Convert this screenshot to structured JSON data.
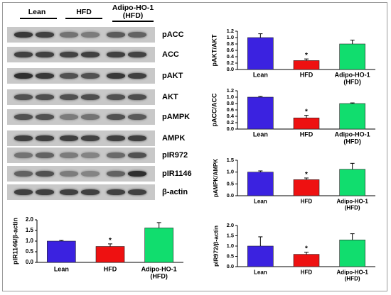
{
  "blot": {
    "groups": [
      {
        "label": "Lean",
        "line2": ""
      },
      {
        "label": "HFD",
        "line2": ""
      },
      {
        "label": "Adipo-HO-1",
        "line2": "(HFD)"
      }
    ],
    "rows": [
      {
        "label": "pACC",
        "intensity": [
          0.85,
          0.8,
          0.5,
          0.45,
          0.65,
          0.6
        ]
      },
      {
        "label": "ACC",
        "intensity": [
          0.8,
          0.8,
          0.78,
          0.8,
          0.8,
          0.78
        ]
      },
      {
        "label": "pAKT",
        "intensity": [
          0.9,
          0.85,
          0.7,
          0.7,
          0.85,
          0.8
        ]
      },
      {
        "label": "AKT",
        "intensity": [
          0.7,
          0.72,
          0.7,
          0.72,
          0.7,
          0.72
        ]
      },
      {
        "label": "pAMPK",
        "intensity": [
          0.7,
          0.7,
          0.45,
          0.5,
          0.7,
          0.65
        ]
      },
      {
        "label": "AMPK",
        "intensity": [
          0.8,
          0.8,
          0.8,
          0.78,
          0.8,
          0.8
        ]
      },
      {
        "label": "pIR972",
        "intensity": [
          0.5,
          0.6,
          0.45,
          0.4,
          0.55,
          0.7
        ]
      },
      {
        "label": "pIR1146",
        "intensity": [
          0.6,
          0.7,
          0.45,
          0.4,
          0.6,
          0.9
        ]
      },
      {
        "label": "β-actin",
        "intensity": [
          0.8,
          0.8,
          0.8,
          0.8,
          0.8,
          0.8
        ]
      }
    ]
  },
  "colors": {
    "lean": "#3b22e0",
    "hfd": "#ee1111",
    "adipo": "#11dd6e"
  },
  "chart_data": [
    {
      "id": "pir1146",
      "type": "bar",
      "categories": [
        "Lean",
        "HFD",
        "Adipo-HO-1\n(HFD)"
      ],
      "values": [
        1.0,
        0.75,
        1.62
      ],
      "errors": [
        0.03,
        0.12,
        0.25
      ],
      "annotations": [
        "",
        "*",
        ""
      ],
      "ylabel": "pIR1146/β-actin",
      "ylim": [
        0,
        2.0
      ],
      "yticks": [
        "0.0",
        "0.5",
        "1.0",
        "1.5",
        "2.0"
      ]
    },
    {
      "id": "pakt",
      "type": "bar",
      "categories": [
        "Lean",
        "HFD",
        "Adipo-HO-1\n(HFD)"
      ],
      "values": [
        1.0,
        0.28,
        0.8
      ],
      "errors": [
        0.12,
        0.05,
        0.12
      ],
      "annotations": [
        "",
        "*",
        ""
      ],
      "ylabel": "pAKT/AKT",
      "ylim": [
        0,
        1.2
      ],
      "yticks": [
        "0.0",
        "0.2",
        "0.4",
        "0.6",
        "0.8",
        "1.0",
        "1.2"
      ]
    },
    {
      "id": "pacc",
      "type": "bar",
      "categories": [
        "Lean",
        "HFD",
        "Adipo-HO-1\n(HFD)"
      ],
      "values": [
        1.0,
        0.35,
        0.8
      ],
      "errors": [
        0.02,
        0.08,
        0.02
      ],
      "annotations": [
        "",
        "*",
        ""
      ],
      "ylabel": "pACC/ACC",
      "ylim": [
        0,
        1.2
      ],
      "yticks": [
        "0.0",
        "0.2",
        "0.4",
        "0.6",
        "0.8",
        "1.0",
        "1.2"
      ]
    },
    {
      "id": "pampk",
      "type": "bar",
      "categories": [
        "Lean",
        "HFD",
        "Adipo-HO-1\n(HFD)"
      ],
      "values": [
        1.0,
        0.68,
        1.12
      ],
      "errors": [
        0.05,
        0.07,
        0.25
      ],
      "annotations": [
        "",
        "*",
        ""
      ],
      "ylabel": "pAMPK/AMPK",
      "ylim": [
        0,
        1.5
      ],
      "yticks": [
        "0.0",
        "0.5",
        "1.0",
        "1.5"
      ]
    },
    {
      "id": "pir972",
      "type": "bar",
      "categories": [
        "Lean",
        "HFD",
        "Adipo-HO-1\n(HFD)"
      ],
      "values": [
        1.0,
        0.6,
        1.3
      ],
      "errors": [
        0.45,
        0.1,
        0.3
      ],
      "annotations": [
        "",
        "*",
        ""
      ],
      "ylabel": "pIR972/β-actin",
      "ylim": [
        0,
        2.0
      ],
      "yticks": [
        "0.0",
        "0.5",
        "1.0",
        "1.5",
        "2.0"
      ]
    }
  ]
}
